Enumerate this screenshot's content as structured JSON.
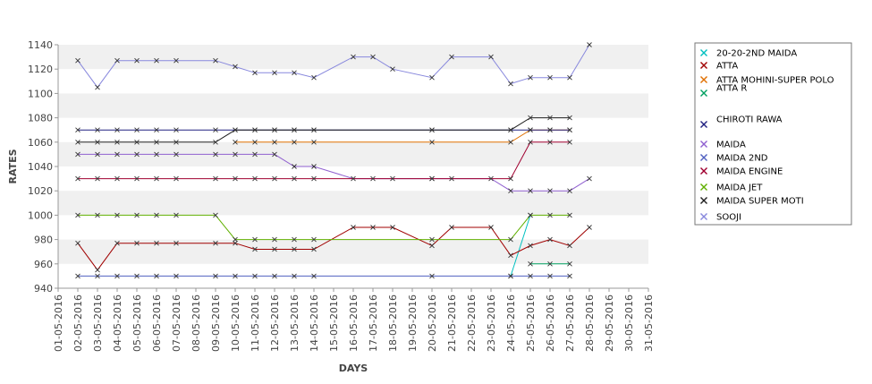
{
  "chart_data": {
    "type": "line",
    "xlabel": "DAYS",
    "ylabel": "RATES",
    "ylim": [
      940,
      1140
    ],
    "y_ticks": [
      940,
      960,
      980,
      1000,
      1020,
      1040,
      1060,
      1080,
      1100,
      1120,
      1140
    ],
    "grid": "alternating horizontal bands",
    "legend_position": "right",
    "categories": [
      "01-05-2016",
      "02-05-2016",
      "03-05-2016",
      "04-05-2016",
      "05-05-2016",
      "06-05-2016",
      "07-05-2016",
      "08-05-2016",
      "09-05-2016",
      "10-05-2016",
      "11-05-2016",
      "12-05-2016",
      "13-05-2016",
      "14-05-2016",
      "15-05-2016",
      "16-05-2016",
      "17-05-2016",
      "18-05-2016",
      "19-05-2016",
      "20-05-2016",
      "21-05-2016",
      "22-05-2016",
      "23-05-2016",
      "24-05-2016",
      "25-05-2016",
      "26-05-2016",
      "27-05-2016",
      "28-05-2016",
      "29-05-2016",
      "30-05-2016",
      "31-05-2016"
    ],
    "series": [
      {
        "name": "20-20-2ND MAIDA",
        "color": "#00c0c0",
        "values": [
          null,
          null,
          null,
          null,
          null,
          null,
          null,
          null,
          null,
          null,
          null,
          null,
          null,
          null,
          null,
          null,
          null,
          null,
          null,
          null,
          null,
          null,
          null,
          950,
          1000,
          null,
          null,
          null,
          null,
          null,
          null
        ]
      },
      {
        "name": "ATTA",
        "color": "#a00000",
        "values": [
          null,
          977,
          955,
          977,
          977,
          977,
          977,
          null,
          977,
          977,
          972,
          972,
          972,
          972,
          null,
          990,
          990,
          990,
          null,
          975,
          990,
          null,
          990,
          967,
          975,
          980,
          975,
          990,
          null,
          null,
          null
        ]
      },
      {
        "name": "ATTA MOHINI-SUPER POLO",
        "color": "#e07000",
        "values": [
          null,
          null,
          null,
          null,
          null,
          null,
          null,
          null,
          null,
          1060,
          1060,
          1060,
          1060,
          1060,
          null,
          null,
          null,
          null,
          null,
          1060,
          null,
          null,
          null,
          1060,
          1070,
          1070,
          1070,
          null,
          null,
          null,
          null
        ]
      },
      {
        "name": "ATTA R",
        "color": "#00a060",
        "values": [
          null,
          null,
          null,
          null,
          null,
          null,
          null,
          null,
          null,
          null,
          null,
          null,
          null,
          null,
          null,
          null,
          null,
          null,
          null,
          null,
          null,
          null,
          null,
          null,
          960,
          960,
          960,
          null,
          null,
          null,
          null
        ]
      },
      {
        "name": "CHIROTI RAWA",
        "color": "#202080",
        "values": [
          null,
          1070,
          1070,
          1070,
          1070,
          1070,
          1070,
          null,
          1070,
          1070,
          1070,
          1070,
          1070,
          1070,
          null,
          null,
          null,
          null,
          null,
          1070,
          null,
          null,
          null,
          1070,
          1070,
          1070,
          1070,
          null,
          null,
          null,
          null
        ]
      },
      {
        "name": "MAIDA",
        "color": "#9060d0",
        "values": [
          null,
          1050,
          1050,
          1050,
          1050,
          1050,
          1050,
          null,
          1050,
          1050,
          1050,
          1050,
          1040,
          1040,
          null,
          1030,
          1030,
          1030,
          null,
          1030,
          1030,
          null,
          1030,
          1020,
          1020,
          1020,
          1020,
          1030,
          null,
          null,
          null
        ]
      },
      {
        "name": "MAIDA 2ND",
        "color": "#5060c0",
        "values": [
          null,
          950,
          950,
          950,
          950,
          950,
          950,
          null,
          950,
          950,
          950,
          950,
          950,
          950,
          null,
          null,
          null,
          null,
          null,
          950,
          null,
          null,
          null,
          950,
          950,
          950,
          950,
          null,
          null,
          null,
          null
        ]
      },
      {
        "name": "MAIDA ENGINE",
        "color": "#a00030",
        "values": [
          null,
          1030,
          1030,
          1030,
          1030,
          1030,
          1030,
          null,
          1030,
          1030,
          1030,
          1030,
          1030,
          1030,
          null,
          null,
          null,
          null,
          null,
          1030,
          null,
          null,
          null,
          1030,
          1060,
          1060,
          1060,
          null,
          null,
          null,
          null
        ]
      },
      {
        "name": "MAIDA JET",
        "color": "#60b000",
        "values": [
          null,
          1000,
          1000,
          1000,
          1000,
          1000,
          1000,
          null,
          1000,
          980,
          980,
          980,
          980,
          980,
          null,
          null,
          null,
          null,
          null,
          980,
          null,
          null,
          null,
          980,
          1000,
          1000,
          1000,
          null,
          null,
          null,
          null
        ]
      },
      {
        "name": "MAIDA SUPER MOTI",
        "color": "#202020",
        "values": [
          null,
          1060,
          1060,
          1060,
          1060,
          1060,
          1060,
          null,
          1060,
          1070,
          1070,
          1070,
          1070,
          1070,
          null,
          null,
          null,
          null,
          null,
          1070,
          null,
          null,
          null,
          1070,
          1080,
          1080,
          1080,
          null,
          null,
          null,
          null
        ]
      },
      {
        "name": "SOOJI",
        "color": "#8888dd",
        "values": [
          null,
          1127,
          1105,
          1127,
          1127,
          1127,
          1127,
          null,
          1127,
          1122,
          1117,
          1117,
          1117,
          1113,
          null,
          1130,
          1130,
          1120,
          null,
          1113,
          1130,
          null,
          1130,
          1108,
          1113,
          1113,
          1113,
          1140,
          null,
          null,
          null
        ]
      }
    ]
  }
}
